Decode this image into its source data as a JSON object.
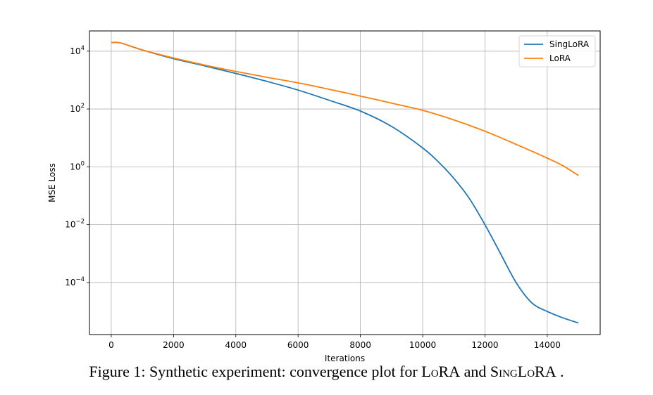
{
  "chart_data": {
    "type": "line",
    "xlabel": "Iterations",
    "ylabel": "MSE Loss",
    "xlim": [
      -700,
      15700
    ],
    "ylim_log10": [
      -5.8,
      4.7
    ],
    "yscale": "log",
    "grid": true,
    "legend_position": "top-right",
    "xticks": [
      {
        "value": 0,
        "label": "0"
      },
      {
        "value": 2000,
        "label": "2000"
      },
      {
        "value": 4000,
        "label": "4000"
      },
      {
        "value": 6000,
        "label": "6000"
      },
      {
        "value": 8000,
        "label": "8000"
      },
      {
        "value": 10000,
        "label": "10000"
      },
      {
        "value": 12000,
        "label": "12000"
      },
      {
        "value": 14000,
        "label": "14000"
      }
    ],
    "yticks": [
      {
        "exp": 4,
        "base": "10",
        "sup": "4"
      },
      {
        "exp": 2,
        "base": "10",
        "sup": "2"
      },
      {
        "exp": 0,
        "base": "10",
        "sup": "0"
      },
      {
        "exp": -2,
        "base": "10",
        "sup": "−2"
      },
      {
        "exp": -4,
        "base": "10",
        "sup": "−4"
      }
    ],
    "series": [
      {
        "name": "SingLoRA",
        "color": "#1f77b4",
        "x": [
          0,
          200,
          400,
          1000,
          2000,
          3000,
          4000,
          5000,
          6000,
          7000,
          8000,
          9000,
          10000,
          10500,
          11000,
          11500,
          12000,
          12500,
          13000,
          13500,
          14000,
          14500,
          15000
        ],
        "y": [
          20000,
          20000,
          18000,
          11000,
          5500,
          3100,
          1700,
          900,
          450,
          200,
          85,
          25,
          4.5,
          1.5,
          0.4,
          0.08,
          0.01,
          0.001,
          0.0001,
          2e-05,
          1e-05,
          6e-06,
          4e-06
        ]
      },
      {
        "name": "LoRA",
        "color": "#ff7f0e",
        "x": [
          0,
          200,
          400,
          1000,
          2000,
          3000,
          4000,
          5000,
          6000,
          7000,
          8000,
          9000,
          10000,
          11000,
          12000,
          13000,
          14000,
          14500,
          15000
        ],
        "y": [
          20000,
          20000,
          18000,
          11000,
          5800,
          3300,
          2000,
          1250,
          800,
          480,
          280,
          160,
          90,
          42,
          17,
          6,
          2,
          1.1,
          0.5
        ]
      }
    ]
  },
  "caption": {
    "prefix": "Figure 1: Synthetic experiment: convergence plot for ",
    "lora": "LoRA",
    "mid": " and ",
    "singlora": "SingLoRA",
    "suffix": " ."
  }
}
